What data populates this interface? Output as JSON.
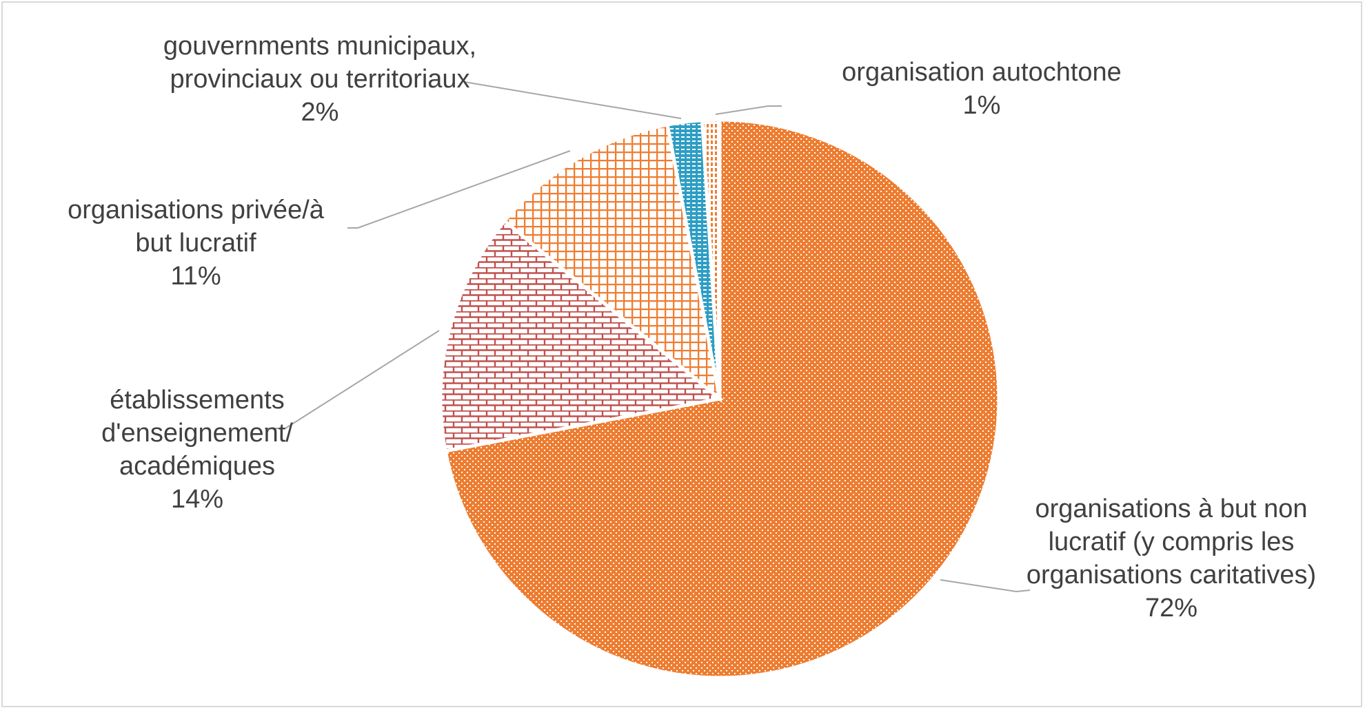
{
  "chart_data": {
    "type": "pie",
    "slices": [
      {
        "name": "organisations à but non lucratif (y compris les organisations caritatives)",
        "label_lines": [
          "organisations à but non",
          "lucratif (y compris les",
          "organisations caritatives)"
        ],
        "percent_label": "72%",
        "value": 72,
        "color": "#ed7d31",
        "pattern": "dots"
      },
      {
        "name": "établissements d'enseignement/ académiques",
        "label_lines": [
          "établissements",
          "d'enseignement/",
          "académiques"
        ],
        "percent_label": "14%",
        "value": 14,
        "color": "#c0504d",
        "pattern": "bricks"
      },
      {
        "name": "organisations privée/à but lucratif",
        "label_lines": [
          "organisations privée/à",
          "but lucratif"
        ],
        "percent_label": "11%",
        "value": 11,
        "color": "#ed7d31",
        "pattern": "grid"
      },
      {
        "name": "gouvernments municipaux, provinciaux ou territoriaux",
        "label_lines": [
          "gouvernments municipaux,",
          "provinciaux ou territoriaux"
        ],
        "percent_label": "2%",
        "value": 2,
        "color": "#2e9ec4",
        "pattern": "dashes"
      },
      {
        "name": "organisation autochtone",
        "label_lines": [
          "organisation autochtone"
        ],
        "percent_label": "1%",
        "value": 1,
        "color": "#ed7d31",
        "pattern": "dashes"
      }
    ],
    "legend": "none",
    "data_labels": "outside with leader lines"
  }
}
